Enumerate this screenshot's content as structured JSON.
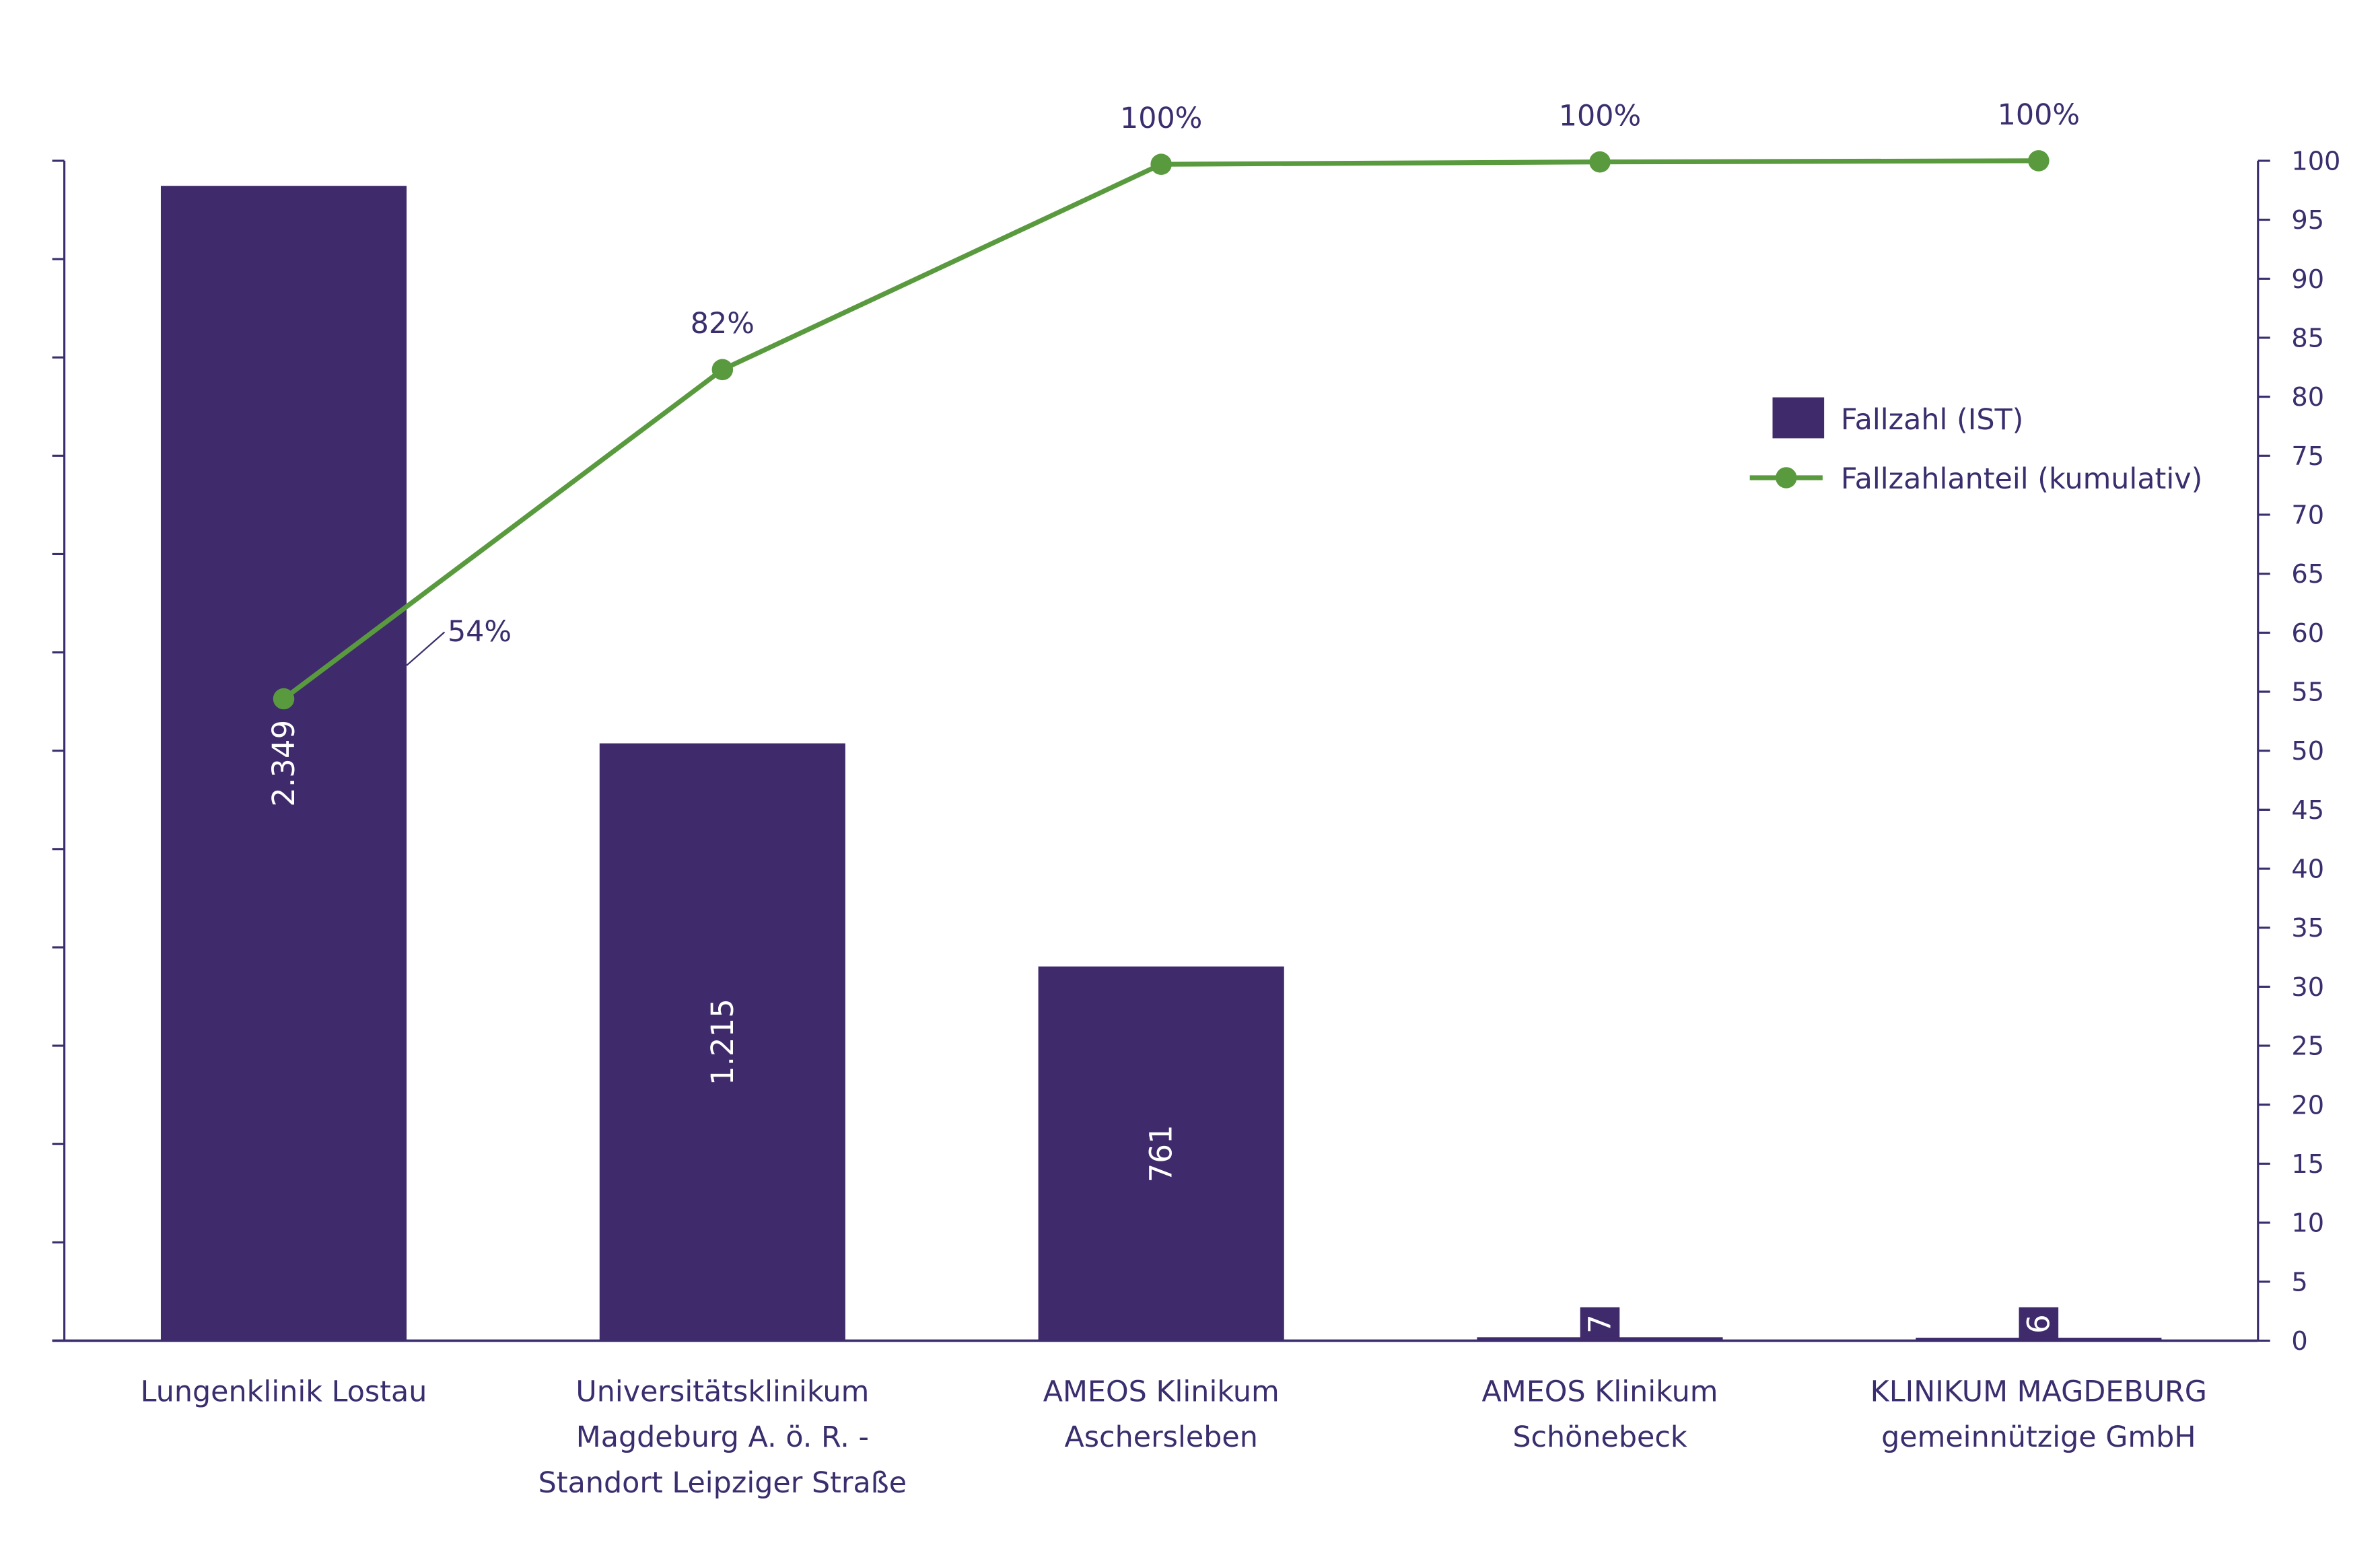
{
  "chart_data": {
    "type": "bar",
    "categories": [
      [
        "Lungenklinik Lostau"
      ],
      [
        "Universitätsklinikum",
        "Magdeburg A. ö. R. -",
        "Standort Leipziger Straße"
      ],
      [
        "AMEOS Klinikum",
        "Aschersleben"
      ],
      [
        "AMEOS Klinikum",
        "Schönebeck"
      ],
      [
        "KLINIKUM MAGDEBURG",
        "gemeinnützige GmbH"
      ]
    ],
    "series": [
      {
        "name": "Fallzahl (IST)",
        "kind": "bar",
        "axis": "left",
        "values": [
          2349,
          1215,
          761,
          7,
          6
        ],
        "labels": [
          "2.349",
          "1.215",
          "761",
          "7",
          "6"
        ],
        "color": "#3f2a6b"
      },
      {
        "name": "Fallzahlanteil (kumulativ)",
        "kind": "line",
        "axis": "right",
        "values": [
          54.4,
          82.3,
          99.7,
          99.9,
          100
        ],
        "labels": [
          "54%",
          "82%",
          "100%",
          "100%",
          "100%"
        ],
        "color": "#5a9a3f"
      }
    ],
    "y_left": {
      "range": [
        0,
        2400
      ],
      "step": 200,
      "tick_labels_shown": false
    },
    "y_right": {
      "range": [
        0,
        100
      ],
      "step": 5
    },
    "legend_position": "right",
    "text_color": "#3b2e6e"
  }
}
